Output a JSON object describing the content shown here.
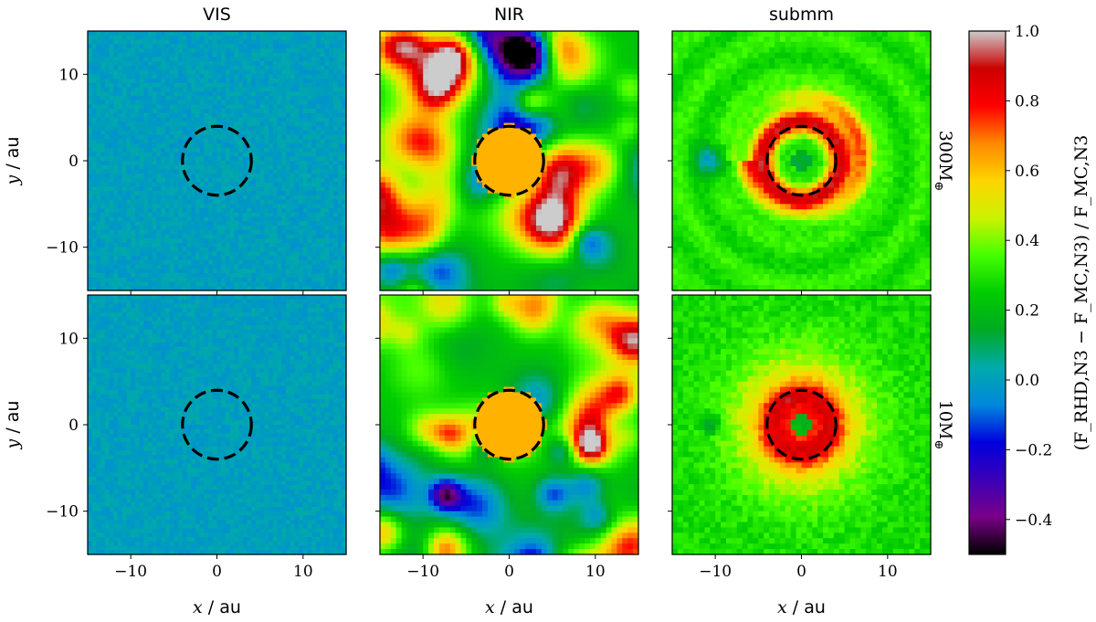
{
  "chart_data": {
    "type": "heatmap",
    "columns": [
      "VIS",
      "NIR",
      "submm"
    ],
    "rows": [
      {
        "label_value": "300",
        "label_unit": "M",
        "label_sub": "⊕"
      },
      {
        "label_value": "10",
        "label_unit": "M",
        "label_sub": "⊕"
      }
    ],
    "xlabel": {
      "var": "x",
      "unit": " / au"
    },
    "ylabel": {
      "var": "y",
      "unit": " / au"
    },
    "xlim": [
      -15,
      15
    ],
    "ylim": [
      -15,
      15
    ],
    "xticks": [
      {
        "v": -10,
        "t": "−10"
      },
      {
        "v": 0,
        "t": "0"
      },
      {
        "v": 10,
        "t": "10"
      }
    ],
    "yticks": [
      {
        "v": 10,
        "t": "10"
      },
      {
        "v": 0,
        "t": "0"
      },
      {
        "v": -10,
        "t": "−10"
      }
    ],
    "marker_circle_radius_au": 4,
    "colorbar": {
      "label": "(F_RHD,N3 − F_MC,N3) / F_MC,N3",
      "range": [
        -0.5,
        1.0
      ],
      "ticks": [
        {
          "v": 1.0,
          "t": "1.0"
        },
        {
          "v": 0.8,
          "t": "0.8"
        },
        {
          "v": 0.6,
          "t": "0.6"
        },
        {
          "v": 0.4,
          "t": "0.4"
        },
        {
          "v": 0.2,
          "t": "0.2"
        },
        {
          "v": 0.0,
          "t": "0.0"
        },
        {
          "v": -0.2,
          "t": "−0.2"
        },
        {
          "v": -0.4,
          "t": "−0.4"
        }
      ],
      "colormap": "nipy_spectral",
      "colors": [
        "#000000",
        "#7a0087",
        "#3a00b8",
        "#0000dd",
        "#0088dd",
        "#00aaaa",
        "#00aa22",
        "#00cc00",
        "#44ff00",
        "#ccf200",
        "#ffd400",
        "#ff8800",
        "#ff0000",
        "#cc0000",
        "#cccccc"
      ]
    },
    "panels": [
      {
        "row": 0,
        "col": 0,
        "description_value": 0.0,
        "pattern": "noise_uniform"
      },
      {
        "row": 0,
        "col": 1,
        "pattern": "blobs_with_central_disk",
        "central_value": 0.62
      },
      {
        "row": 0,
        "col": 2,
        "pattern": "spiral_ring"
      },
      {
        "row": 1,
        "col": 0,
        "pattern": "noise_uniform"
      },
      {
        "row": 1,
        "col": 1,
        "pattern": "blobs_with_central_disk",
        "central_value": 0.62
      },
      {
        "row": 1,
        "col": 2,
        "pattern": "central_ring"
      }
    ]
  }
}
